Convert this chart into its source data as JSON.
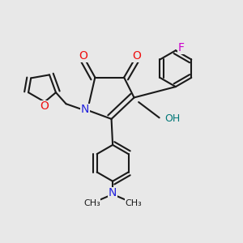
{
  "background_color": "#e8e8e8",
  "bond_color": "#1a1a1a",
  "atom_colors": {
    "O": "#ee1111",
    "N": "#2222dd",
    "F": "#cc00cc",
    "OH": "#007777",
    "C": "#1a1a1a"
  },
  "figsize": [
    3.0,
    3.0
  ],
  "dpi": 100
}
